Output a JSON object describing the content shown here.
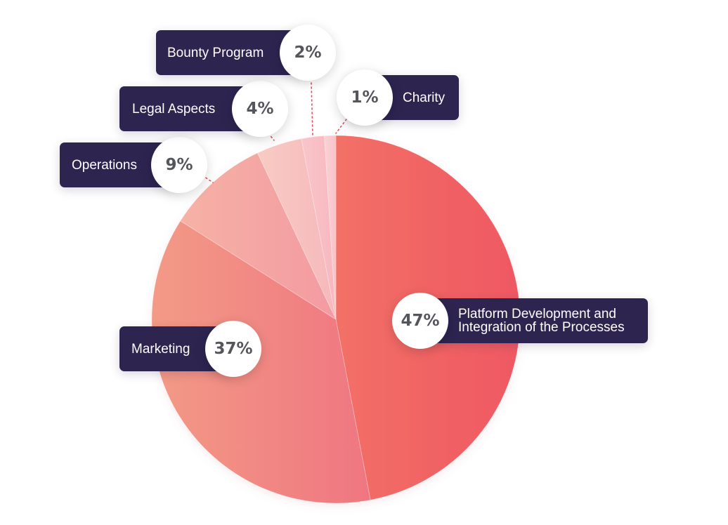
{
  "chart_data": {
    "type": "pie",
    "slices": [
      {
        "key": "platform",
        "label": "Platform Development and\nIntegration of the Processes",
        "value": 47,
        "value_label": "47%",
        "color": "#f27066",
        "color_end": "#ef5863"
      },
      {
        "key": "marketing",
        "label": "Marketing",
        "value": 37,
        "value_label": "37%",
        "color": "#f39a86",
        "color_end": "#ef7681"
      },
      {
        "key": "operations",
        "label": "Operations",
        "value": 9,
        "value_label": "9%",
        "color": "#f6b2a5",
        "color_end": "#f39aa2"
      },
      {
        "key": "legal",
        "label": "Legal Aspects",
        "value": 4,
        "value_label": "4%",
        "color": "#f8cbc4",
        "color_end": "#f6b8bc"
      },
      {
        "key": "bounty",
        "label": "Bounty Program",
        "value": 2,
        "value_label": "2%",
        "color": "#f9c6ca",
        "color_end": "#f7b7bf"
      },
      {
        "key": "charity",
        "label": "Charity",
        "value": 1,
        "value_label": "1%",
        "color": "#fad2d5",
        "color_end": "#f8c3c9"
      }
    ],
    "start_angle_deg": 0,
    "direction": "clockwise",
    "label_style": "callouts",
    "tag_color": "#2d2450",
    "leader_color": "#e8505b"
  }
}
